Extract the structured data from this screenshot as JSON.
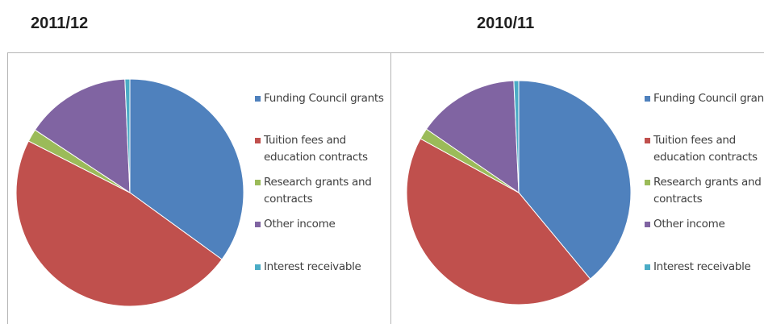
{
  "chart_data": [
    {
      "type": "pie",
      "title": "2011/12",
      "series": [
        {
          "name": "Funding Council grants",
          "value": 35.0,
          "color": "#4f81bd"
        },
        {
          "name": "Tuition fees and education contracts",
          "value": 47.5,
          "color": "#c0504d"
        },
        {
          "name": "Research grants and contracts",
          "value": 1.8,
          "color": "#9bbb59"
        },
        {
          "name": "Other income",
          "value": 15.0,
          "color": "#8064a2"
        },
        {
          "name": "Interest receivable",
          "value": 0.7,
          "color": "#4bacc6"
        }
      ],
      "legend": "right"
    },
    {
      "type": "pie",
      "title": "2010/11",
      "series": [
        {
          "name": "Funding Council grants",
          "value": 39.0,
          "color": "#4f81bd"
        },
        {
          "name": "Tuition fees and education contracts",
          "value": 44.0,
          "color": "#c0504d"
        },
        {
          "name": "Research grants and contracts",
          "value": 1.6,
          "color": "#9bbb59"
        },
        {
          "name": "Other income",
          "value": 14.7,
          "color": "#8064a2"
        },
        {
          "name": "Interest receivable",
          "value": 0.7,
          "color": "#4bacc6"
        }
      ],
      "legend": "right"
    }
  ]
}
